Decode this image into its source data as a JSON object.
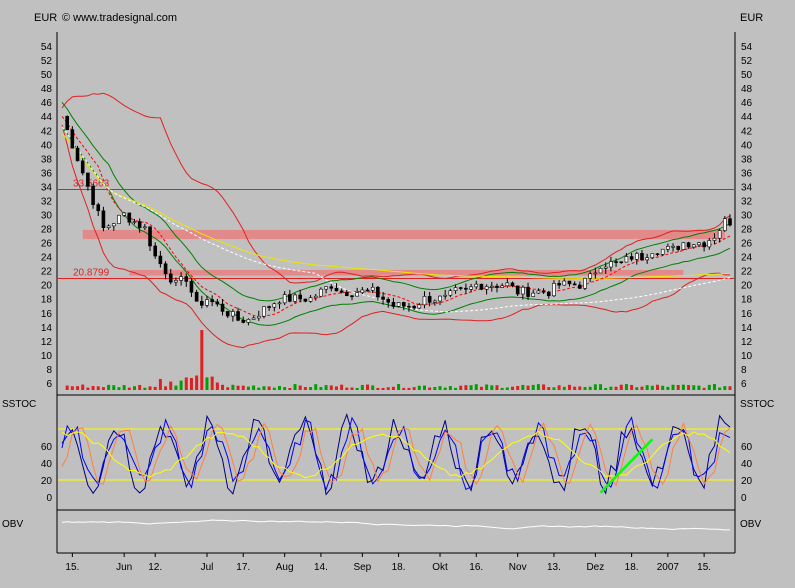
{
  "header": {
    "currency_left": "EUR",
    "currency_right": "EUR",
    "copyright": "© www.tradesignal.com"
  },
  "panels": {
    "stoch_left": "SSTOC",
    "stoch_right": "SSTOC",
    "obv_left": "OBV",
    "obv_right": "OBV"
  },
  "colors": {
    "background": "#c0c0c0",
    "price_line": "#e02020",
    "volume_up": "#00a000",
    "volume_down": "#e02020",
    "bollinger": "#e02020",
    "keltner": "#008000",
    "ma_long": "#e8e800",
    "ma_short": "#ff0000",
    "ma_dashed": "#ffffff",
    "stoch_fast": "#000080",
    "stoch_slow": "#0000ff",
    "stoch_orange": "#ff8040",
    "stoch_yellow": "#ffff00",
    "trendline": "#00ff00",
    "obv": "#ffffff",
    "band": "#e88080"
  },
  "chart_data": [
    {
      "type": "candlestick",
      "ylim": [
        5,
        56
      ],
      "yticks": [
        6,
        8,
        10,
        12,
        14,
        16,
        18,
        20,
        22,
        24,
        26,
        28,
        30,
        32,
        34,
        36,
        38,
        40,
        42,
        44,
        46,
        48,
        50,
        52,
        54
      ],
      "x_ticks": [
        "15.",
        "Jun",
        "12.",
        "Jul",
        "17.",
        "Aug",
        "14.",
        "Sep",
        "18.",
        "Okt",
        "16.",
        "Nov",
        "13.",
        "Dez",
        "18.",
        "2007",
        "15."
      ],
      "x_tick_index": [
        2,
        12,
        18,
        28,
        35,
        43,
        50,
        58,
        65,
        73,
        80,
        88,
        95,
        103,
        110,
        117,
        124
      ],
      "n_bars": 130,
      "horizontal_lines": [
        {
          "label": "33.5663",
          "value": 33.5663
        },
        {
          "label": "20.8799",
          "value": 20.8799
        }
      ],
      "support_bands": [
        {
          "from_index": 4,
          "to_index": 128,
          "low": 26.5,
          "high": 27.8
        },
        {
          "from_index": 13,
          "to_index": 120,
          "low": 21.3,
          "high": 22.1
        }
      ],
      "close_path": [
        [
          0,
          44
        ],
        [
          2,
          40
        ],
        [
          4,
          36
        ],
        [
          6,
          32
        ],
        [
          8,
          28
        ],
        [
          10,
          29
        ],
        [
          12,
          30
        ],
        [
          14,
          29
        ],
        [
          16,
          28
        ],
        [
          18,
          24
        ],
        [
          20,
          22
        ],
        [
          22,
          20
        ],
        [
          24,
          21
        ],
        [
          26,
          17
        ],
        [
          28,
          18
        ],
        [
          30,
          17
        ],
        [
          32,
          16
        ],
        [
          34,
          15
        ],
        [
          36,
          15
        ],
        [
          38,
          16
        ],
        [
          40,
          17
        ],
        [
          42,
          18
        ],
        [
          44,
          18
        ],
        [
          46,
          18
        ],
        [
          48,
          18
        ],
        [
          50,
          19
        ],
        [
          52,
          20
        ],
        [
          54,
          19
        ],
        [
          56,
          19
        ],
        [
          58,
          19
        ],
        [
          60,
          19
        ],
        [
          62,
          18
        ],
        [
          64,
          17
        ],
        [
          66,
          17
        ],
        [
          68,
          17
        ],
        [
          70,
          18
        ],
        [
          72,
          18
        ],
        [
          74,
          18
        ],
        [
          76,
          19
        ],
        [
          78,
          19
        ],
        [
          80,
          20
        ],
        [
          82,
          20
        ],
        [
          84,
          20
        ],
        [
          86,
          20
        ],
        [
          88,
          19
        ],
        [
          90,
          19
        ],
        [
          92,
          19
        ],
        [
          94,
          19
        ],
        [
          96,
          20
        ],
        [
          98,
          20
        ],
        [
          100,
          20
        ],
        [
          102,
          21
        ],
        [
          104,
          23
        ],
        [
          106,
          23
        ],
        [
          108,
          23
        ],
        [
          110,
          24
        ],
        [
          112,
          24
        ],
        [
          114,
          25
        ],
        [
          116,
          25
        ],
        [
          118,
          25
        ],
        [
          120,
          26
        ],
        [
          122,
          26
        ],
        [
          124,
          26
        ],
        [
          126,
          27
        ],
        [
          128,
          29
        ]
      ]
    },
    {
      "type": "line",
      "title": "SSTOC",
      "ylim": [
        0,
        100
      ],
      "yticks": [
        0,
        20,
        40,
        60
      ],
      "reference_lines": [
        20,
        80
      ]
    },
    {
      "type": "line",
      "title": "OBV"
    }
  ]
}
